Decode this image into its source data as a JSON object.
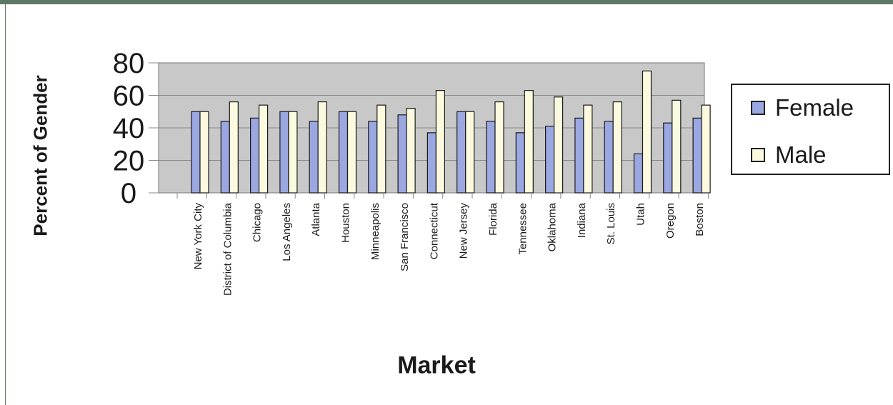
{
  "chart_data": {
    "type": "bar",
    "title": "",
    "xlabel": "Market",
    "ylabel": "Percent of Gender",
    "ylim": [
      0,
      80
    ],
    "yticks": [
      0,
      20,
      40,
      60,
      80
    ],
    "grid": true,
    "legend_position": "right",
    "categories": [
      "New York City",
      "District of Columbia",
      "Chicago",
      "Los Angeles",
      "Atlanta",
      "Houston",
      "Minneapolis",
      "San Francisco",
      "Connecticut",
      "New Jersey",
      "Florida",
      "Tennessee",
      "Oklahoma",
      "Indiana",
      "St. Louis",
      "Utah",
      "Oregon",
      "Boston"
    ],
    "series": [
      {
        "name": "Female",
        "color": "#9aa7e0",
        "values": [
          50,
          44,
          46,
          50,
          44,
          50,
          44,
          48,
          37,
          50,
          44,
          37,
          41,
          46,
          44,
          24,
          43,
          46
        ]
      },
      {
        "name": "Male",
        "color": "#fbfadf",
        "values": [
          50,
          56,
          54,
          50,
          56,
          50,
          54,
          52,
          63,
          50,
          56,
          63,
          59,
          54,
          56,
          75,
          57,
          54
        ]
      }
    ],
    "plot_background": "#c8c8c8"
  }
}
